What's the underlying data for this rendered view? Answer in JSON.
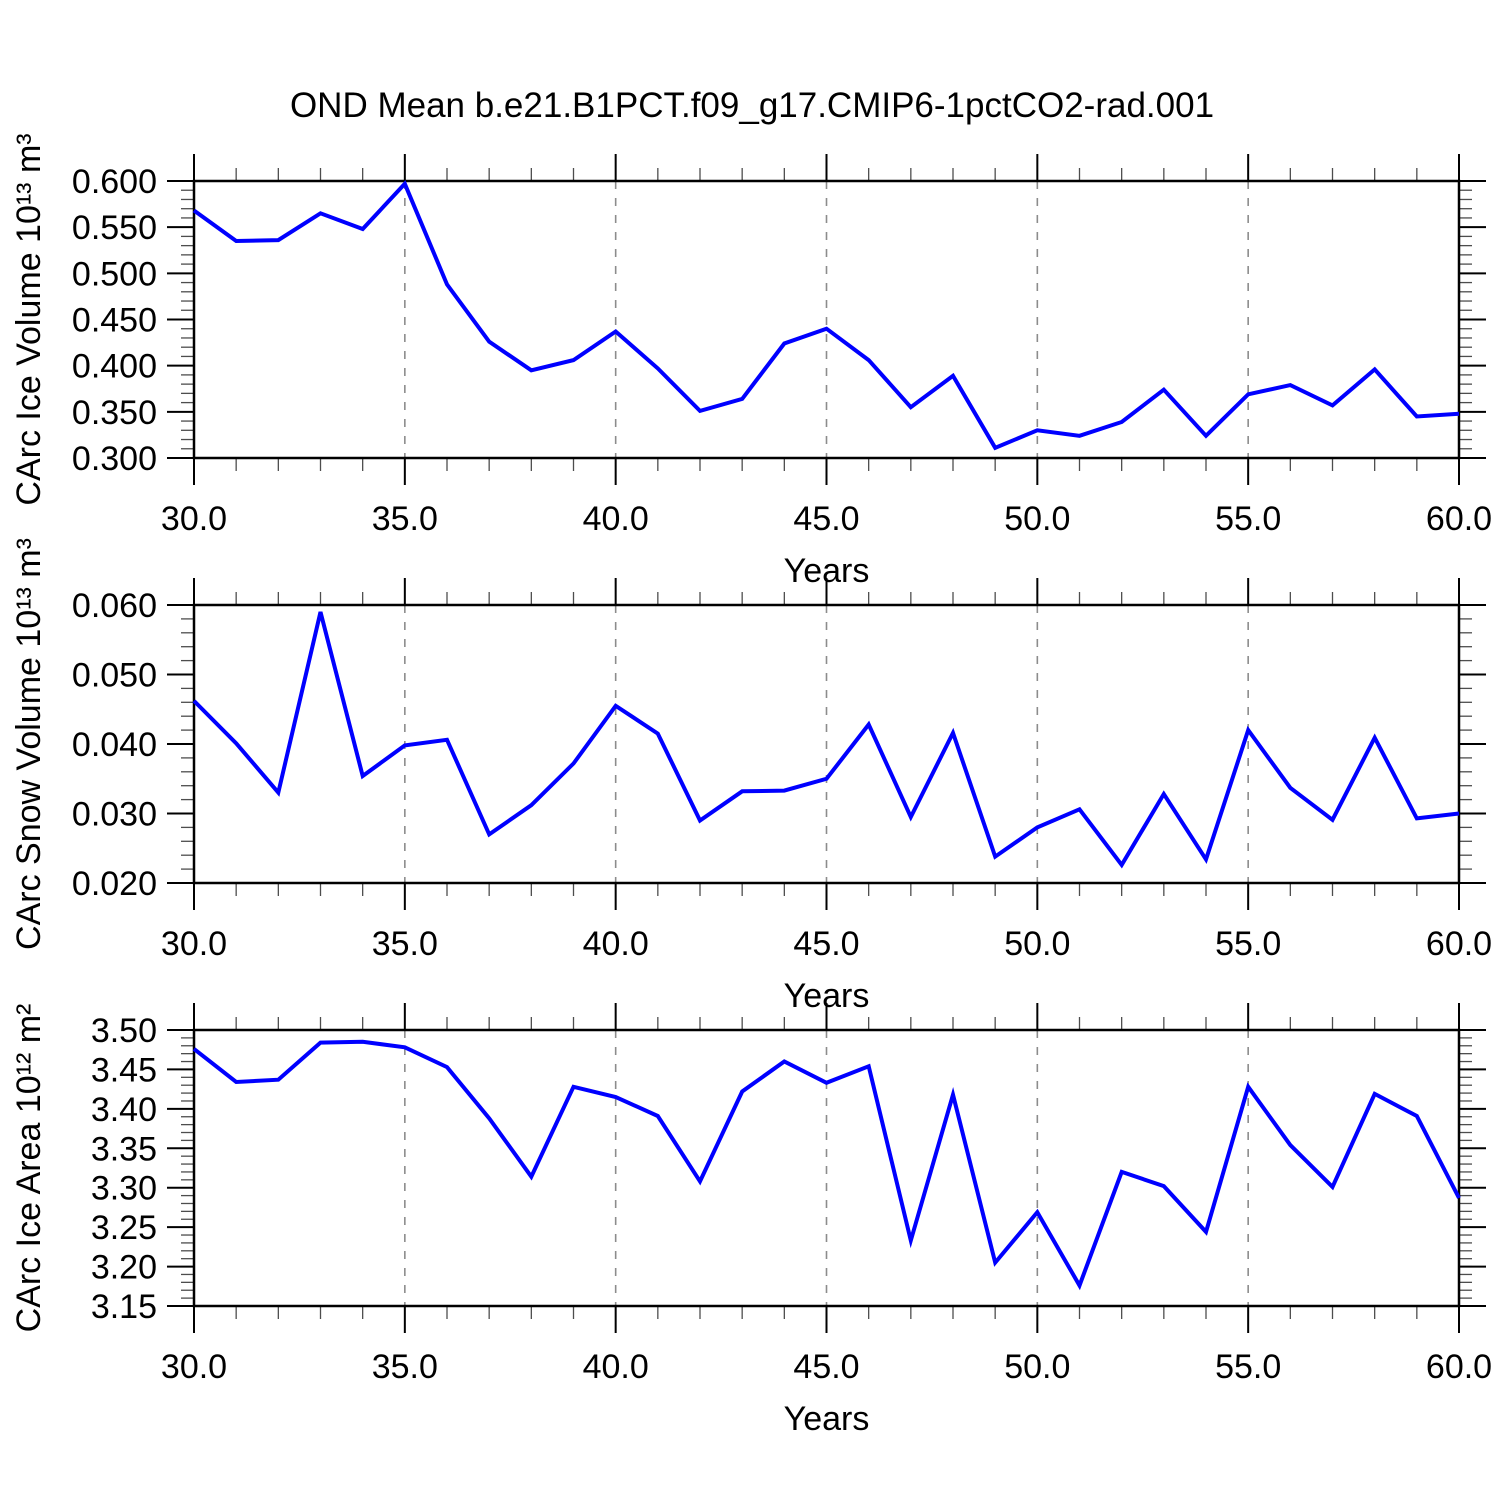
{
  "title": "OND Mean b.e21.B1PCT.f09_g17.CMIP6-1pctCO2-rad.001",
  "line_color": "#0000ff",
  "chart_data": [
    {
      "type": "line",
      "xlabel": "Years",
      "ylabel": "CArc Ice Volume 10¹³ m³",
      "x": [
        30,
        31,
        32,
        33,
        34,
        35,
        36,
        37,
        38,
        39,
        40,
        41,
        42,
        43,
        44,
        45,
        46,
        47,
        48,
        49,
        50,
        51,
        52,
        53,
        54,
        55,
        56,
        57,
        58,
        59,
        60
      ],
      "values": [
        0.568,
        0.535,
        0.536,
        0.565,
        0.548,
        0.597,
        0.488,
        0.426,
        0.395,
        0.406,
        0.437,
        0.397,
        0.351,
        0.364,
        0.424,
        0.44,
        0.406,
        0.355,
        0.389,
        0.311,
        0.33,
        0.324,
        0.339,
        0.374,
        0.324,
        0.369,
        0.379,
        0.357,
        0.396,
        0.345,
        0.348
      ],
      "xlim": [
        30,
        60
      ],
      "ylim": [
        0.3,
        0.6
      ],
      "xticks": [
        30,
        35,
        40,
        45,
        50,
        55,
        60
      ],
      "xtick_labels": [
        "30.0",
        "35.0",
        "40.0",
        "45.0",
        "50.0",
        "55.0",
        "60.0"
      ],
      "xminor_step": 1,
      "yticks": [
        0.3,
        0.35,
        0.4,
        0.45,
        0.5,
        0.55,
        0.6
      ],
      "ytick_labels": [
        "0.300",
        "0.350",
        "0.400",
        "0.450",
        "0.500",
        "0.550",
        "0.600"
      ],
      "yminor_step": 0.01,
      "grid_x": [
        35,
        40,
        45,
        50,
        55
      ],
      "grid_style": "dashed-vertical"
    },
    {
      "type": "line",
      "xlabel": "Years",
      "ylabel": "CArc Snow Volume 10¹³ m³",
      "x": [
        30,
        31,
        32,
        33,
        34,
        35,
        36,
        37,
        38,
        39,
        40,
        41,
        42,
        43,
        44,
        45,
        46,
        47,
        48,
        49,
        50,
        51,
        52,
        53,
        54,
        55,
        56,
        57,
        58,
        59,
        60
      ],
      "values": [
        0.0462,
        0.0401,
        0.033,
        0.059,
        0.0354,
        0.0398,
        0.0406,
        0.027,
        0.0312,
        0.0372,
        0.0455,
        0.0415,
        0.029,
        0.0332,
        0.0333,
        0.035,
        0.0428,
        0.0295,
        0.0416,
        0.0238,
        0.028,
        0.0306,
        0.0226,
        0.0328,
        0.0234,
        0.042,
        0.0337,
        0.0291,
        0.0409,
        0.0293,
        0.03
      ],
      "xlim": [
        30,
        60
      ],
      "ylim": [
        0.02,
        0.06
      ],
      "xticks": [
        30,
        35,
        40,
        45,
        50,
        55,
        60
      ],
      "xtick_labels": [
        "30.0",
        "35.0",
        "40.0",
        "45.0",
        "50.0",
        "55.0",
        "60.0"
      ],
      "xminor_step": 1,
      "yticks": [
        0.02,
        0.03,
        0.04,
        0.05,
        0.06
      ],
      "ytick_labels": [
        "0.020",
        "0.030",
        "0.040",
        "0.050",
        "0.060"
      ],
      "yminor_step": 0.002,
      "grid_x": [
        35,
        40,
        45,
        50,
        55
      ],
      "grid_style": "dashed-vertical"
    },
    {
      "type": "line",
      "xlabel": "Years",
      "ylabel": "CArc Ice Area 10¹² m²",
      "x": [
        30,
        31,
        32,
        33,
        34,
        35,
        36,
        37,
        38,
        39,
        40,
        41,
        42,
        43,
        44,
        45,
        46,
        47,
        48,
        49,
        50,
        51,
        52,
        53,
        54,
        55,
        56,
        57,
        58,
        59,
        60
      ],
      "values": [
        3.476,
        3.434,
        3.437,
        3.484,
        3.485,
        3.478,
        3.453,
        3.388,
        3.314,
        3.428,
        3.415,
        3.391,
        3.308,
        3.422,
        3.46,
        3.433,
        3.454,
        3.233,
        3.418,
        3.205,
        3.269,
        3.176,
        3.32,
        3.302,
        3.244,
        3.428,
        3.354,
        3.301,
        3.419,
        3.391,
        3.287
      ],
      "xlim": [
        30,
        60
      ],
      "ylim": [
        3.15,
        3.5
      ],
      "xticks": [
        30,
        35,
        40,
        45,
        50,
        55,
        60
      ],
      "xtick_labels": [
        "30.0",
        "35.0",
        "40.0",
        "45.0",
        "50.0",
        "55.0",
        "60.0"
      ],
      "xminor_step": 1,
      "yticks": [
        3.15,
        3.2,
        3.25,
        3.3,
        3.35,
        3.4,
        3.45,
        3.5
      ],
      "ytick_labels": [
        "3.15",
        "3.20",
        "3.25",
        "3.30",
        "3.35",
        "3.40",
        "3.45",
        "3.50"
      ],
      "yminor_step": 0.01,
      "grid_x": [
        35,
        40,
        45,
        50,
        55
      ],
      "grid_style": "dashed-vertical"
    }
  ]
}
